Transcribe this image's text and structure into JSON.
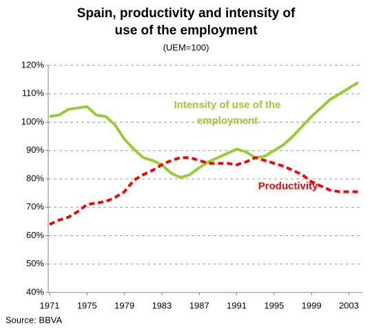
{
  "chart_data": {
    "type": "line",
    "title": [
      "Spain,  productivity and intensity of",
      "use of the employment"
    ],
    "subtitle": "(UEM=100)",
    "source": "Source: BBVA",
    "x": [
      1971,
      1972,
      1973,
      1974,
      1975,
      1976,
      1977,
      1978,
      1979,
      1980,
      1981,
      1982,
      1983,
      1984,
      1985,
      1986,
      1987,
      1988,
      1989,
      1990,
      1991,
      1992,
      1993,
      1994,
      1995,
      1996,
      1997,
      1998,
      1999,
      2000,
      2001,
      2002,
      2003,
      2004
    ],
    "series": [
      {
        "name": "Intensity of use of the employment",
        "color": "#99cc33",
        "dashed": false,
        "values": [
          102,
          102.5,
          104.5,
          105,
          105.5,
          102.5,
          102,
          99,
          94,
          90.5,
          87.5,
          86.5,
          85,
          82,
          80.5,
          81.5,
          84,
          86,
          87.5,
          89,
          90.5,
          89.5,
          87.5,
          88,
          90,
          92,
          95,
          98.5,
          102,
          105,
          108,
          110,
          112,
          114
        ]
      },
      {
        "name": "Productivity",
        "color": "#ff0000",
        "dashed": true,
        "values": [
          64,
          65.5,
          66.5,
          68.5,
          71,
          71.5,
          72,
          73.5,
          75.5,
          79.5,
          81.5,
          83,
          85,
          86.5,
          87.5,
          87.5,
          86.5,
          85.5,
          85.5,
          85.5,
          85,
          86,
          87.5,
          86.5,
          85.5,
          84.5,
          83,
          81.5,
          79,
          77.5,
          76,
          75.5,
          75.5,
          75.5
        ]
      }
    ],
    "annotations": [
      {
        "text": "Intensity of use of the",
        "color": "#99cc33"
      },
      {
        "text": "employment",
        "color": "#99cc33"
      },
      {
        "text": "Productivity",
        "color": "#ff0000"
      }
    ],
    "xlim": [
      1971,
      2004
    ],
    "xticks": [
      1971,
      1975,
      1979,
      1983,
      1987,
      1991,
      1995,
      1999,
      2003
    ],
    "ylim": [
      40,
      120
    ],
    "yticks": [
      {
        "value": 40,
        "label": "40%"
      },
      {
        "value": 50,
        "label": "50%"
      },
      {
        "value": 60,
        "label": "60%"
      },
      {
        "value": 70,
        "label": "70%"
      },
      {
        "value": 80,
        "label": "80%"
      },
      {
        "value": 90,
        "label": "90%"
      },
      {
        "value": 100,
        "label": "100%"
      },
      {
        "value": 110,
        "label": "110%"
      },
      {
        "value": 120,
        "label": "120%"
      }
    ],
    "grid": true
  }
}
